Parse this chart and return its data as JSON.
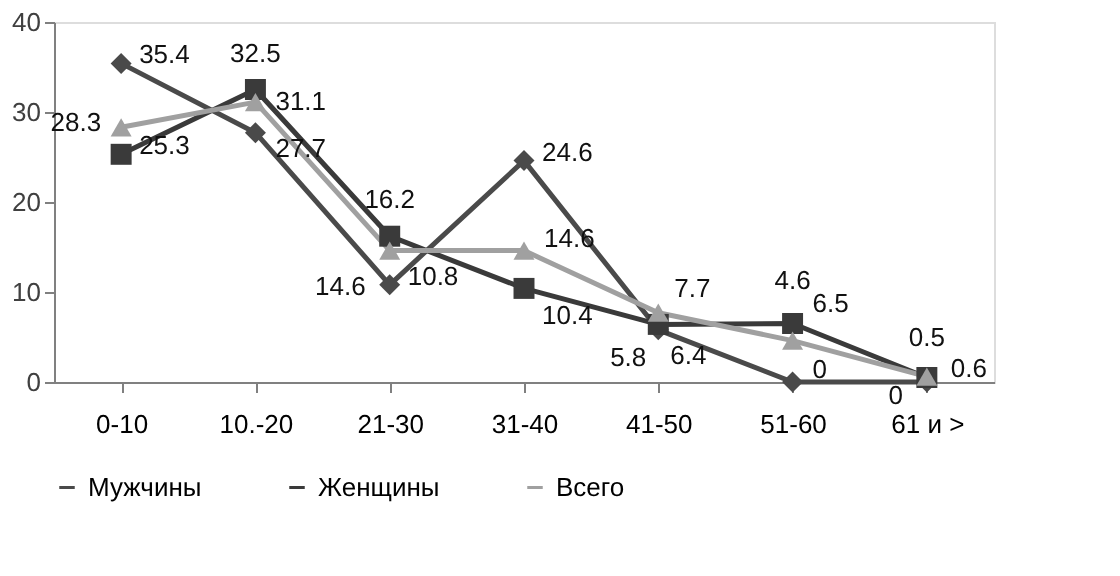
{
  "chart_data": {
    "type": "line",
    "categories": [
      "0-10",
      "10.-20",
      "21-30",
      "31-40",
      "41-50",
      "51-60",
      "61 и >"
    ],
    "series": [
      {
        "name": "Мужчины",
        "color": "#4a4a4a",
        "marker": "diamond",
        "values": [
          35.4,
          27.7,
          10.8,
          24.6,
          5.8,
          0,
          0
        ]
      },
      {
        "name": "Женщины",
        "color": "#3a3a3a",
        "marker": "square",
        "values": [
          25.3,
          32.5,
          16.2,
          10.4,
          6.4,
          6.5,
          0.5
        ]
      },
      {
        "name": "Всего",
        "color": "#a0a0a0",
        "marker": "triangle",
        "values": [
          28.3,
          31.1,
          14.6,
          14.6,
          7.7,
          4.6,
          0.6
        ]
      }
    ],
    "ylim": [
      0,
      40
    ],
    "yticks": [
      0,
      10,
      20,
      30,
      40
    ],
    "grid": false,
    "legend": "bottom",
    "data_labels": true
  }
}
